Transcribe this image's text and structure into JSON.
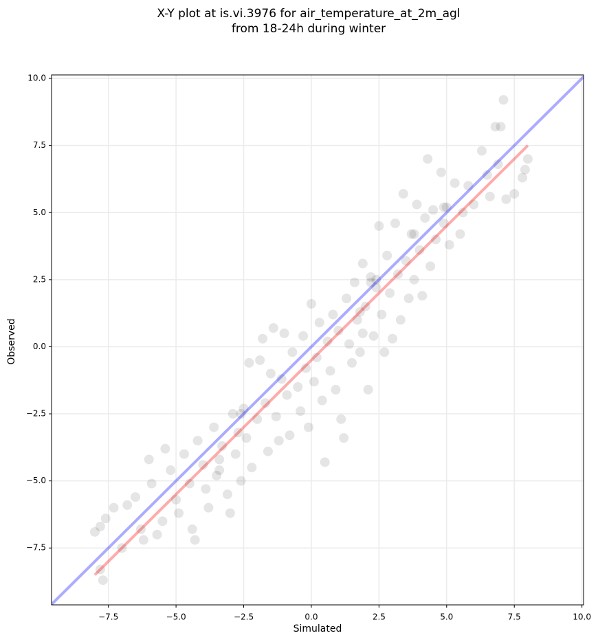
{
  "chart_data": {
    "type": "scatter",
    "title": "X-Y plot at is.vi.3976 for air_temperature_at_2m_agl",
    "subtitle": "from 18-24h during winter",
    "x_label": "Simulated",
    "y_label": "Observed",
    "xlim": [
      -9.6,
      10.06
    ],
    "ylim": [
      -9.62,
      10.13
    ],
    "xticks": [
      {
        "value": -7.5,
        "label": "−7.5"
      },
      {
        "value": -5,
        "label": "−5.0"
      },
      {
        "value": -2.5,
        "label": "−2.5"
      },
      {
        "value": 0,
        "label": "0.0"
      },
      {
        "value": 2.5,
        "label": "2.5"
      },
      {
        "value": 5,
        "label": "5.0"
      },
      {
        "value": 7.5,
        "label": "7.5"
      },
      {
        "value": 10,
        "label": "10.0"
      }
    ],
    "yticks": [
      {
        "value": -7.5,
        "label": "−7.5"
      },
      {
        "value": -5,
        "label": "−5.0"
      },
      {
        "value": -2.5,
        "label": "−2.5"
      },
      {
        "value": 0,
        "label": "0.0"
      },
      {
        "value": 2.5,
        "label": "2.5"
      },
      {
        "value": 5,
        "label": "5.0"
      },
      {
        "value": 7.5,
        "label": "7.5"
      },
      {
        "value": 10,
        "label": "10.0"
      }
    ],
    "grid": true,
    "points": {
      "color": "#000000",
      "x": [
        -8.0,
        -7.8,
        -7.7,
        -7.8,
        -7.6,
        -7.3,
        -7.0,
        -6.8,
        -6.5,
        -6.3,
        -6.2,
        -6.0,
        -5.9,
        -5.7,
        -5.5,
        -5.4,
        -5.2,
        -5.0,
        -4.9,
        -4.7,
        -4.5,
        -4.4,
        -4.3,
        -4.2,
        -4.0,
        -3.9,
        -3.8,
        -3.6,
        -3.5,
        -3.4,
        -3.3,
        -3.1,
        -3.0,
        -2.9,
        -2.8,
        -2.7,
        -2.6,
        -2.5,
        -2.4,
        -2.3,
        -2.2,
        -2.0,
        -1.9,
        -1.8,
        -1.7,
        -1.6,
        -1.5,
        -1.4,
        -1.3,
        -1.2,
        -1.1,
        -1.0,
        -0.9,
        -0.8,
        -0.7,
        -0.5,
        -0.4,
        -0.3,
        -0.2,
        -0.1,
        0.0,
        0.1,
        0.2,
        0.3,
        0.4,
        0.5,
        0.6,
        0.7,
        0.8,
        0.9,
        1.0,
        1.1,
        1.2,
        1.3,
        1.4,
        1.5,
        1.6,
        1.7,
        1.8,
        1.9,
        2.0,
        2.1,
        2.2,
        2.3,
        2.4,
        2.5,
        2.6,
        2.7,
        2.8,
        2.9,
        3.0,
        3.1,
        3.2,
        3.3,
        3.4,
        3.5,
        3.6,
        3.7,
        3.8,
        3.9,
        4.0,
        4.1,
        4.2,
        4.3,
        4.4,
        4.5,
        4.6,
        4.8,
        4.9,
        5.0,
        5.1,
        5.3,
        5.5,
        5.6,
        5.8,
        6.0,
        6.3,
        6.5,
        6.6,
        6.8,
        6.9,
        7.0,
        7.1,
        7.2,
        7.5,
        7.8,
        8.0,
        7.9,
        2.2,
        2.4,
        1.8,
        1.9,
        4.9,
        -3.4,
        -2.6,
        3.8
      ],
      "y": [
        -6.9,
        -6.7,
        -8.7,
        -8.3,
        -6.4,
        -6.0,
        -7.5,
        -5.9,
        -5.6,
        -6.8,
        -7.2,
        -4.2,
        -5.1,
        -7.0,
        -6.5,
        -3.8,
        -4.6,
        -5.7,
        -6.2,
        -4.0,
        -5.1,
        -6.8,
        -7.2,
        -3.5,
        -4.4,
        -5.3,
        -6.0,
        -3.0,
        -4.8,
        -4.2,
        -3.7,
        -5.5,
        -6.2,
        -2.5,
        -4.0,
        -3.2,
        -5.0,
        -2.3,
        -3.4,
        -0.6,
        -4.5,
        -2.7,
        -0.5,
        0.3,
        -2.1,
        -3.9,
        -1.0,
        0.7,
        -2.6,
        -3.5,
        -1.2,
        0.5,
        -1.8,
        -3.3,
        -0.2,
        -1.5,
        -2.4,
        0.4,
        -0.8,
        -3.0,
        1.6,
        -1.3,
        -0.4,
        0.9,
        -2.0,
        -4.3,
        0.2,
        -0.9,
        1.2,
        -1.6,
        0.6,
        -2.7,
        -3.4,
        1.8,
        0.1,
        -0.6,
        2.4,
        1.0,
        -0.2,
        3.1,
        1.5,
        -1.6,
        2.6,
        0.4,
        2.2,
        4.5,
        1.2,
        -0.2,
        3.4,
        2.0,
        0.3,
        4.6,
        2.7,
        1.0,
        5.7,
        3.2,
        1.8,
        4.2,
        2.5,
        5.3,
        3.6,
        1.9,
        4.8,
        7.0,
        3.0,
        5.1,
        4.0,
        6.5,
        4.6,
        5.2,
        3.8,
        6.1,
        4.2,
        5.0,
        6.0,
        5.3,
        7.3,
        6.4,
        5.6,
        8.2,
        6.8,
        8.2,
        9.2,
        5.5,
        5.7,
        6.3,
        7.0,
        6.6,
        2.4,
        2.5,
        1.3,
        0.5,
        5.2,
        -4.6,
        -2.5,
        4.2
      ]
    },
    "lines": [
      {
        "color": "#0000ff",
        "x": [
          -9.6,
          10.06
        ],
        "y": [
          -9.6,
          10.06
        ]
      },
      {
        "color": "#ff0000",
        "x": [
          -8,
          8
        ],
        "y": [
          -8.5,
          7.5
        ]
      }
    ]
  }
}
